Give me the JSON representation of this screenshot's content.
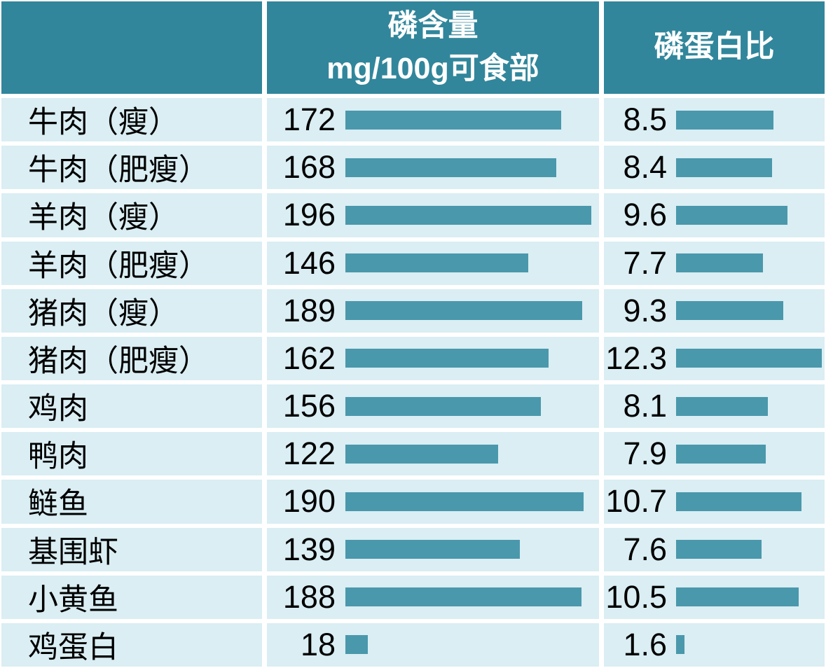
{
  "table": {
    "header": {
      "phosphorus_title": "磷含量",
      "phosphorus_unit": "mg/100g可食部",
      "ratio_title": "磷蛋白比"
    },
    "rows": [
      {
        "label": "牛肉（瘦）",
        "phosphorus": 172,
        "ratio": 8.5
      },
      {
        "label": "牛肉（肥瘦）",
        "phosphorus": 168,
        "ratio": 8.4
      },
      {
        "label": "羊肉（瘦）",
        "phosphorus": 196,
        "ratio": 9.6
      },
      {
        "label": "羊肉（肥瘦）",
        "phosphorus": 146,
        "ratio": 7.7
      },
      {
        "label": "猪肉（瘦）",
        "phosphorus": 189,
        "ratio": 9.3
      },
      {
        "label": "猪肉（肥瘦）",
        "phosphorus": 162,
        "ratio": 12.3
      },
      {
        "label": "鸡肉",
        "phosphorus": 156,
        "ratio": 8.1
      },
      {
        "label": "鸭肉",
        "phosphorus": 122,
        "ratio": 7.9
      },
      {
        "label": "鲢鱼",
        "phosphorus": 190,
        "ratio": 10.7
      },
      {
        "label": "基围虾",
        "phosphorus": 139,
        "ratio": 7.6
      },
      {
        "label": "小黄鱼",
        "phosphorus": 188,
        "ratio": 10.5
      },
      {
        "label": "鸡蛋白",
        "phosphorus": 18,
        "ratio": 1.6
      }
    ]
  },
  "bar_scale": {
    "phosphorus": {
      "min_value": 18,
      "max_value": 196,
      "min_pct": 9,
      "max_pct": 100
    },
    "ratio": {
      "min_value": 1.6,
      "max_value": 12.3,
      "min_pct": 6,
      "max_pct": 100
    }
  },
  "colors": {
    "header_bg": "#31869B",
    "header_text": "#FFFFFF",
    "row_bg": "#DAEEF3",
    "bar_fill": "#4A98AC",
    "body_text": "#000000",
    "divider": "#FFFFFF"
  },
  "chart_data": {
    "type": "table",
    "title": "",
    "categories": [
      "牛肉（瘦）",
      "牛肉（肥瘦）",
      "羊肉（瘦）",
      "羊肉（肥瘦）",
      "猪肉（瘦）",
      "猪肉（肥瘦）",
      "鸡肉",
      "鸭肉",
      "鲢鱼",
      "基围虾",
      "小黄鱼",
      "鸡蛋白"
    ],
    "series": [
      {
        "name": "磷含量 mg/100g可食部",
        "values": [
          172,
          168,
          196,
          146,
          189,
          162,
          156,
          122,
          190,
          139,
          188,
          18
        ]
      },
      {
        "name": "磷蛋白比",
        "values": [
          8.5,
          8.4,
          9.6,
          7.7,
          9.3,
          12.3,
          8.1,
          7.9,
          10.7,
          7.6,
          10.5,
          1.6
        ]
      }
    ],
    "bar_style": "horizontal in-cell data bars, teal fill, scaled per column",
    "column_ranges": {
      "磷含量": [
        18,
        196
      ],
      "磷蛋白比": [
        1.6,
        12.3
      ]
    },
    "grid": "white separators between cells",
    "legend_position": "none"
  }
}
